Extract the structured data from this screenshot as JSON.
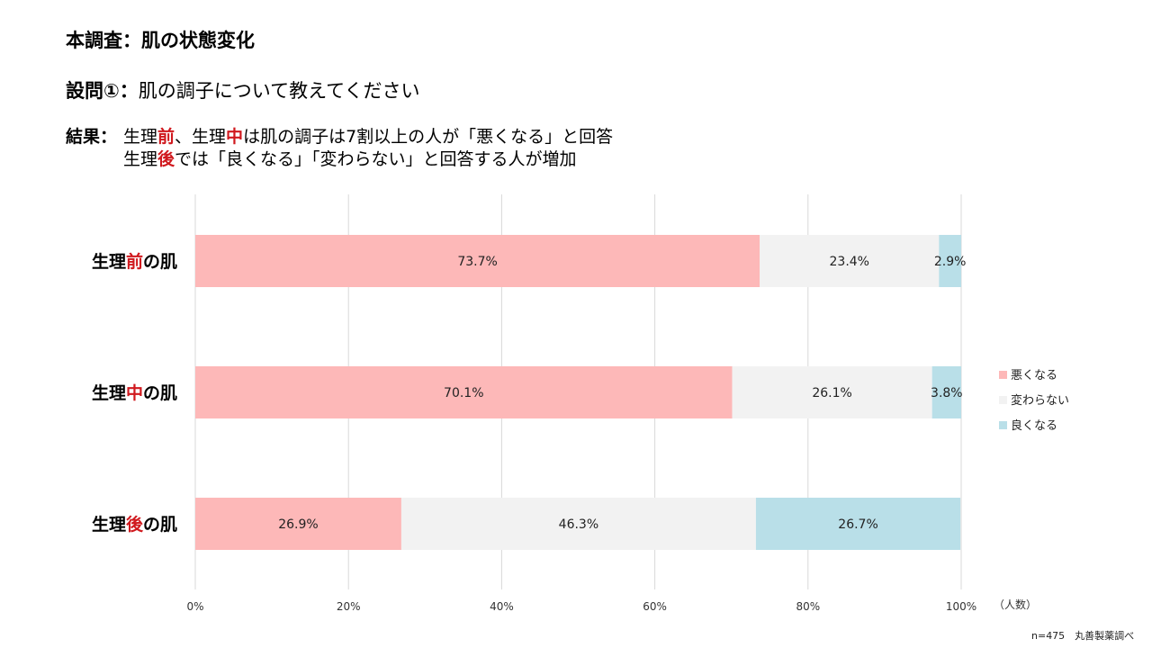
{
  "header": {
    "title": "本調査：肌の状態変化",
    "question_label": "設問①：",
    "question_text": "肌の調子について教えてください",
    "result_label": "結果：",
    "result_line1": {
      "p1": "生理",
      "p2": "前",
      "p3": "、生理",
      "p4": "中",
      "p5": "は肌の調子は7割以上の人が「悪くなる」と回答"
    },
    "result_line2": {
      "p1": "生理",
      "p2": "後",
      "p3": "では「良くなる」「変わらない」と回答する人が増加"
    }
  },
  "footnote": "n=475　丸善製薬調べ",
  "colors": {
    "worse": "#fdb8b8",
    "same": "#f2f2f2",
    "better": "#b9dfe8",
    "highlight": "#d0191e",
    "grid": "#d9d9d9"
  },
  "chart_data": {
    "type": "bar",
    "orientation": "horizontal",
    "stacked": true,
    "categories": [
      {
        "prefix": "生理",
        "highlight": "前",
        "suffix": "の肌"
      },
      {
        "prefix": "生理",
        "highlight": "中",
        "suffix": "の肌"
      },
      {
        "prefix": "生理",
        "highlight": "後",
        "suffix": "の肌"
      }
    ],
    "series": [
      {
        "name": "悪くなる",
        "color_key": "worse",
        "values": [
          73.7,
          70.1,
          26.9
        ]
      },
      {
        "name": "変わらない",
        "color_key": "same",
        "values": [
          23.4,
          26.1,
          46.3
        ]
      },
      {
        "name": "良くなる",
        "color_key": "better",
        "values": [
          2.9,
          3.8,
          26.7
        ]
      }
    ],
    "value_suffix": "%",
    "xlim": [
      0,
      100
    ],
    "xticks": [
      "0%",
      "20%",
      "40%",
      "60%",
      "80%",
      "100%"
    ],
    "xlabel": "（人数）",
    "legend_position": "right",
    "grid": true
  }
}
